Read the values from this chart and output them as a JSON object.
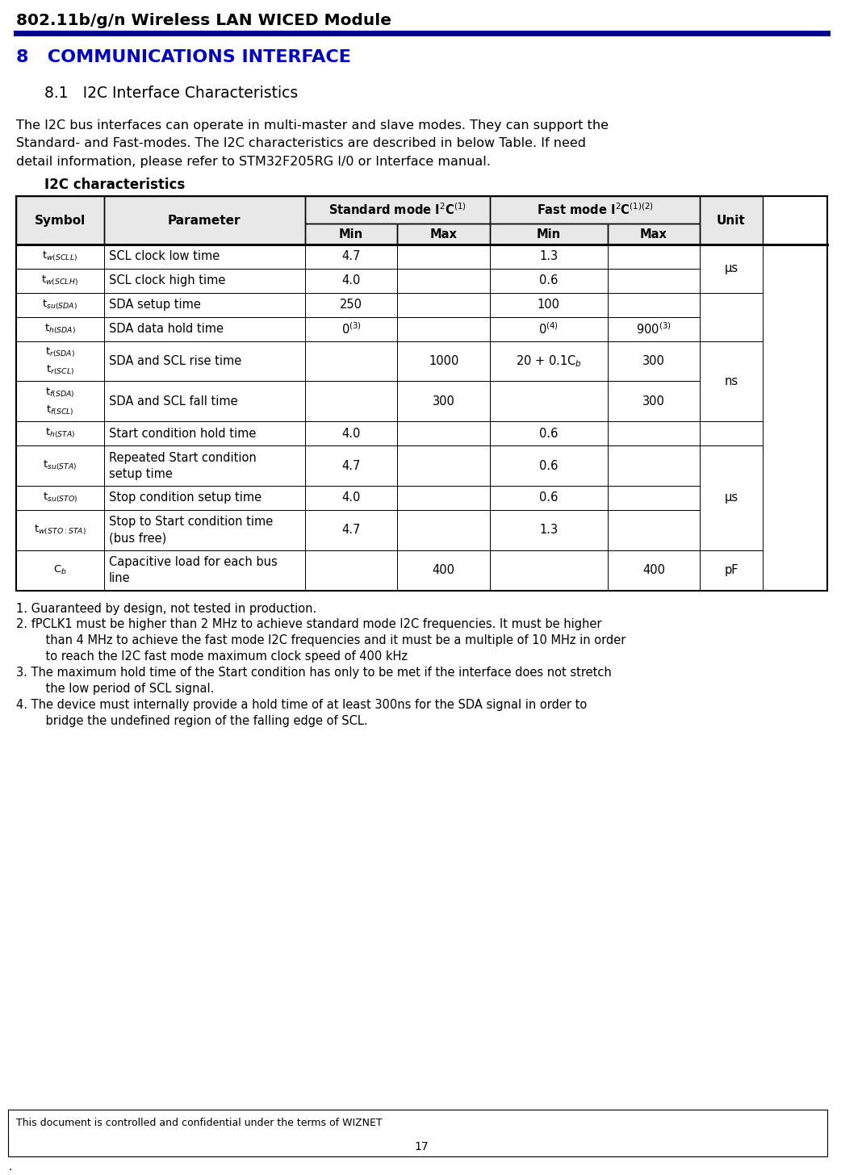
{
  "page_title": "802.11b/g/n Wireless LAN WICED Module",
  "section_number": "8",
  "section_title": "COMMUNICATIONS INTERFACE",
  "subsection": "8.1   I2C Interface Characteristics",
  "body_line1": "The I2C bus interfaces can operate in multi-master and slave modes. They can support the",
  "body_line2": "Standard- and Fast-modes. The I2C characteristics are described in below Table. If need",
  "body_line3": "detail information, please refer to STM32F205RG I/0 or Interface manual.",
  "table_title": "I2C characteristics",
  "footnote1": "1. Guaranteed by design, not tested in production.",
  "footnote2a": "2. fPCLK1 must be higher than 2 MHz to achieve standard mode I2C frequencies. It must be higher",
  "footnote2b": "    than 4 MHz to achieve the fast mode I2C frequencies and it must be a multiple of 10 MHz in order",
  "footnote2c": "    to reach the I2C fast mode maximum clock speed of 400 kHz",
  "footnote3a": "3. The maximum hold time of the Start condition has only to be met if the interface does not stretch",
  "footnote3b": "    the low period of SCL signal.",
  "footnote4a": "4. The device must internally provide a hold time of at least 300ns for the SDA signal in order to",
  "footnote4b": "    bridge the undefined region of the falling edge of SCL.",
  "footer_text": "This document is controlled and confidential under the terms of WIZNET",
  "footer_page": "17",
  "section_color": "#0000CC",
  "header_line_color": "#00008B"
}
